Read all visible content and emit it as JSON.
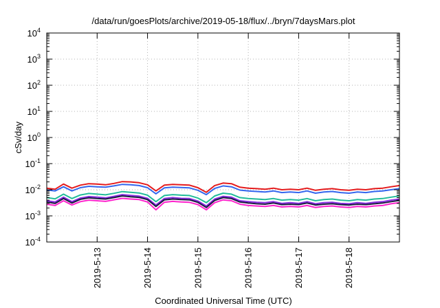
{
  "chart_data": {
    "type": "line",
    "title": "/data/run/goesPlots/archive/2019-05-18/flux/../bryn/7daysMars.plot",
    "xlabel": "Coordinated Universal Time (UTC)",
    "ylabel": "cSv/day",
    "yscale": "log",
    "ylim": [
      0.0001,
      10000
    ],
    "xlim": [
      "2019-05-12T00:00",
      "2019-05-19T00:00"
    ],
    "grid": true,
    "y_ticks": [
      {
        "base": "10",
        "exp": "4"
      },
      {
        "base": "10",
        "exp": "3"
      },
      {
        "base": "10",
        "exp": "2"
      },
      {
        "base": "10",
        "exp": "1"
      },
      {
        "base": "10",
        "exp": "0"
      },
      {
        "base": "10",
        "exp": "-1"
      },
      {
        "base": "10",
        "exp": "-2"
      },
      {
        "base": "10",
        "exp": "-3"
      },
      {
        "base": "10",
        "exp": "-4"
      }
    ],
    "x_ticks": [
      "2019-5-13",
      "2019-5-14",
      "2019-5-15",
      "2019-5-16",
      "2019-5-17",
      "2019-5-18"
    ],
    "x": [
      "2019-05-12T00:00",
      "2019-05-12T04:00",
      "2019-05-12T08:00",
      "2019-05-12T12:00",
      "2019-05-12T16:00",
      "2019-05-12T20:00",
      "2019-05-13T00:00",
      "2019-05-13T04:00",
      "2019-05-13T08:00",
      "2019-05-13T12:00",
      "2019-05-13T16:00",
      "2019-05-13T20:00",
      "2019-05-14T00:00",
      "2019-05-14T04:00",
      "2019-05-14T08:00",
      "2019-05-14T12:00",
      "2019-05-14T16:00",
      "2019-05-14T20:00",
      "2019-05-15T00:00",
      "2019-05-15T04:00",
      "2019-05-15T08:00",
      "2019-05-15T12:00",
      "2019-05-15T16:00",
      "2019-05-15T20:00",
      "2019-05-16T00:00",
      "2019-05-16T04:00",
      "2019-05-16T08:00",
      "2019-05-16T12:00",
      "2019-05-16T16:00",
      "2019-05-16T20:00",
      "2019-05-17T00:00",
      "2019-05-17T04:00",
      "2019-05-17T08:00",
      "2019-05-17T12:00",
      "2019-05-17T16:00",
      "2019-05-17T20:00",
      "2019-05-18T00:00",
      "2019-05-18T04:00",
      "2019-05-18T08:00",
      "2019-05-18T12:00",
      "2019-05-18T16:00",
      "2019-05-18T20:00",
      "2019-05-19T00:00"
    ],
    "series": [
      {
        "color": "#e41a1c",
        "values": [
          0.0115,
          0.0105,
          0.0165,
          0.0115,
          0.015,
          0.017,
          0.0165,
          0.0155,
          0.0175,
          0.0205,
          0.02,
          0.0185,
          0.0155,
          0.009,
          0.015,
          0.016,
          0.0155,
          0.015,
          0.012,
          0.008,
          0.0145,
          0.018,
          0.017,
          0.0125,
          0.0115,
          0.011,
          0.0105,
          0.0115,
          0.01,
          0.0105,
          0.01,
          0.0115,
          0.0095,
          0.0105,
          0.011,
          0.01,
          0.0095,
          0.0105,
          0.01,
          0.011,
          0.0115,
          0.013,
          0.0145
        ]
      },
      {
        "color": "#3366ee",
        "values": [
          0.0098,
          0.009,
          0.013,
          0.009,
          0.012,
          0.0135,
          0.013,
          0.0125,
          0.014,
          0.016,
          0.0155,
          0.0145,
          0.012,
          0.007,
          0.0118,
          0.0125,
          0.0122,
          0.0118,
          0.0095,
          0.0065,
          0.0112,
          0.014,
          0.013,
          0.0097,
          0.009,
          0.0086,
          0.0082,
          0.009,
          0.0078,
          0.0082,
          0.0078,
          0.009,
          0.0074,
          0.0082,
          0.0086,
          0.0078,
          0.0074,
          0.0082,
          0.0078,
          0.0086,
          0.009,
          0.01,
          0.011
        ]
      },
      {
        "color": "#22bb99",
        "values": [
          0.005,
          0.0045,
          0.0068,
          0.0046,
          0.0063,
          0.0072,
          0.0068,
          0.0064,
          0.0073,
          0.0085,
          0.008,
          0.0075,
          0.0062,
          0.0035,
          0.006,
          0.0065,
          0.0062,
          0.006,
          0.0048,
          0.0032,
          0.0058,
          0.0074,
          0.0068,
          0.005,
          0.0046,
          0.0044,
          0.0042,
          0.0046,
          0.004,
          0.0042,
          0.004,
          0.0046,
          0.0038,
          0.0042,
          0.0044,
          0.004,
          0.0038,
          0.0042,
          0.004,
          0.0044,
          0.0046,
          0.0052,
          0.0058
        ]
      },
      {
        "color": "#8a2be2",
        "values": [
          0.0038,
          0.0034,
          0.0052,
          0.0035,
          0.0048,
          0.0055,
          0.0052,
          0.0049,
          0.0056,
          0.0065,
          0.0061,
          0.0057,
          0.0047,
          0.0026,
          0.0046,
          0.005,
          0.0047,
          0.0046,
          0.0037,
          0.0024,
          0.0044,
          0.0056,
          0.0052,
          0.0038,
          0.0035,
          0.0033,
          0.0032,
          0.0035,
          0.003,
          0.0032,
          0.003,
          0.0035,
          0.0029,
          0.0032,
          0.0033,
          0.003,
          0.0029,
          0.0032,
          0.003,
          0.0033,
          0.0035,
          0.004,
          0.0044
        ]
      },
      {
        "color": "#1a1a40",
        "values": [
          0.0034,
          0.003,
          0.0046,
          0.0031,
          0.0043,
          0.0049,
          0.0046,
          0.0044,
          0.005,
          0.0058,
          0.0054,
          0.0051,
          0.0042,
          0.0023,
          0.0041,
          0.0044,
          0.0042,
          0.0041,
          0.0033,
          0.0021,
          0.0039,
          0.005,
          0.0046,
          0.0034,
          0.0031,
          0.0029,
          0.0028,
          0.0031,
          0.0027,
          0.0028,
          0.0027,
          0.0031,
          0.0026,
          0.0028,
          0.0029,
          0.0027,
          0.0026,
          0.0028,
          0.0027,
          0.0029,
          0.0031,
          0.0035,
          0.0039
        ]
      },
      {
        "color": "#ff22cc",
        "values": [
          0.0028,
          0.0025,
          0.0038,
          0.0026,
          0.0035,
          0.004,
          0.0038,
          0.0036,
          0.0041,
          0.0047,
          0.0044,
          0.0042,
          0.0034,
          0.0017,
          0.0033,
          0.0036,
          0.0034,
          0.0033,
          0.0027,
          0.0017,
          0.0032,
          0.0041,
          0.0038,
          0.0028,
          0.0025,
          0.0024,
          0.0023,
          0.0025,
          0.0022,
          0.0023,
          0.0022,
          0.0025,
          0.0021,
          0.0023,
          0.0024,
          0.0022,
          0.0021,
          0.0023,
          0.0022,
          0.0024,
          0.0025,
          0.0029,
          0.0032
        ]
      }
    ]
  }
}
